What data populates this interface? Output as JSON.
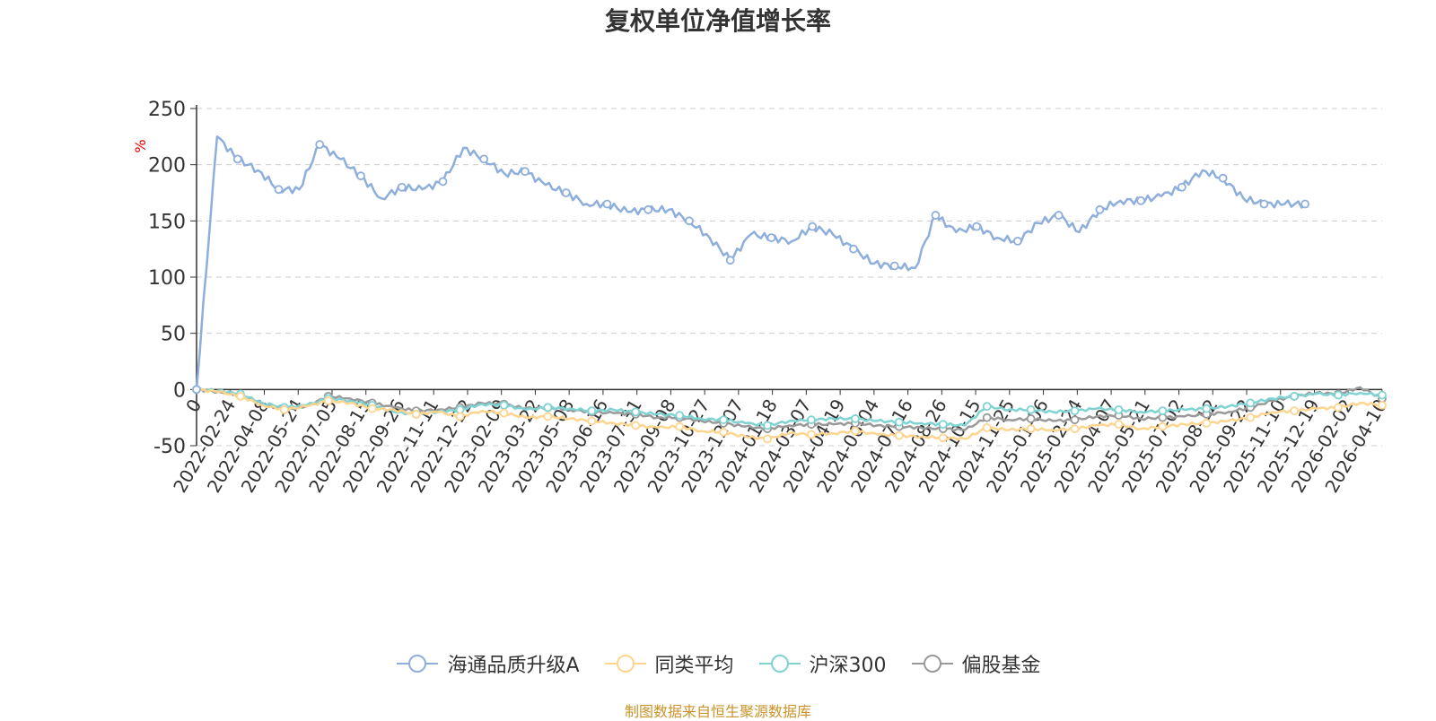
{
  "title": "复权单位净值增长率",
  "source_note": "制图数据来自恒生聚源数据库",
  "legend": [
    {
      "name": "海通品质升级A",
      "color": "#8eaedc"
    },
    {
      "name": "同类平均",
      "color": "#fdd58f"
    },
    {
      "name": "沪深300",
      "color": "#7fd3d3"
    },
    {
      "name": "偏股基金",
      "color": "#999999"
    }
  ],
  "chart_data": {
    "type": "line",
    "ylabel": "%",
    "ylim": [
      -50,
      250
    ],
    "yticks": [
      250,
      200,
      150,
      100,
      50,
      0,
      -50
    ],
    "grid": true,
    "legend_position": "bottom",
    "x_tick_labels": [
      "0",
      "2022-02-24",
      "2022-04-08",
      "2022-05-24",
      "2022-07-05",
      "2022-08-15",
      "2022-09-26",
      "2022-11-11",
      "2022-12-22",
      "2023-02-09",
      "2023-03-22",
      "2023-05-08",
      "2023-06-16",
      "2023-07-31",
      "2023-09-08",
      "2023-10-27",
      "2023-12-07",
      "2024-01-18",
      "2024-03-07",
      "2024-04-19",
      "2024-06-04",
      "2024-07-16",
      "2024-08-26",
      "2024-10-15",
      "2024-11-25",
      "2025-01-06",
      "2025-02-24",
      "2025-04-07",
      "2025-05-21",
      "2025-07-02",
      "2025-08-12",
      "2025-09-22",
      "2025-11-10",
      "2025-12-19",
      "2026-02-02",
      "2026-04-10"
    ],
    "series": [
      {
        "name": "海通品质升级A",
        "color": "#8eaedc",
        "values": [
          0,
          225,
          205,
          195,
          178,
          178,
          218,
          205,
          190,
          170,
          180,
          178,
          185,
          215,
          205,
          192,
          194,
          182,
          175,
          165,
          165,
          158,
          160,
          160,
          150,
          135,
          115,
          138,
          135,
          132,
          145,
          138,
          125,
          112,
          110,
          108,
          155,
          140,
          145,
          135,
          132,
          148,
          155,
          140,
          160,
          168,
          168,
          172,
          180,
          195,
          188,
          170,
          165,
          165,
          165
        ]
      },
      {
        "name": "同类平均",
        "color": "#fdd58f",
        "values": [
          0,
          -2,
          -6,
          -14,
          -18,
          -15,
          -10,
          -12,
          -17,
          -18,
          -22,
          -20,
          -24,
          -19,
          -21,
          -25,
          -24,
          -26,
          -28,
          -30,
          -32,
          -34,
          -33,
          -37,
          -38,
          -42,
          -44,
          -39,
          -40,
          -39,
          -37,
          -40,
          -41,
          -42,
          -43,
          -44,
          -34,
          -36,
          -35,
          -36,
          -35,
          -32,
          -31,
          -35,
          -33,
          -31,
          -30,
          -28,
          -25,
          -20,
          -19,
          -17,
          -16,
          -12,
          -14
        ]
      },
      {
        "name": "沪深300",
        "color": "#7fd3d3",
        "values": [
          0,
          -1,
          -4,
          -12,
          -16,
          -14,
          -8,
          -10,
          -14,
          -20,
          -22,
          -20,
          -18,
          -13,
          -14,
          -18,
          -16,
          -17,
          -19,
          -18,
          -20,
          -22,
          -23,
          -26,
          -27,
          -30,
          -32,
          -28,
          -27,
          -26,
          -26,
          -28,
          -29,
          -30,
          -31,
          -32,
          -15,
          -18,
          -18,
          -20,
          -19,
          -17,
          -18,
          -20,
          -19,
          -18,
          -17,
          -15,
          -12,
          -8,
          -6,
          -4,
          -5,
          -3,
          -5
        ]
      },
      {
        "name": "偏股基金",
        "color": "#999999",
        "values": [
          0,
          -2,
          -5,
          -13,
          -18,
          -15,
          -6,
          -8,
          -12,
          -16,
          -19,
          -18,
          -16,
          -12,
          -13,
          -17,
          -16,
          -18,
          -20,
          -21,
          -22,
          -25,
          -25,
          -28,
          -30,
          -33,
          -35,
          -32,
          -31,
          -31,
          -30,
          -32,
          -33,
          -34,
          -35,
          -36,
          -25,
          -27,
          -26,
          -28,
          -27,
          -24,
          -23,
          -26,
          -25,
          -24,
          -22,
          -20,
          -16,
          -10,
          -6,
          -3,
          -4,
          2,
          -8
        ]
      }
    ]
  }
}
